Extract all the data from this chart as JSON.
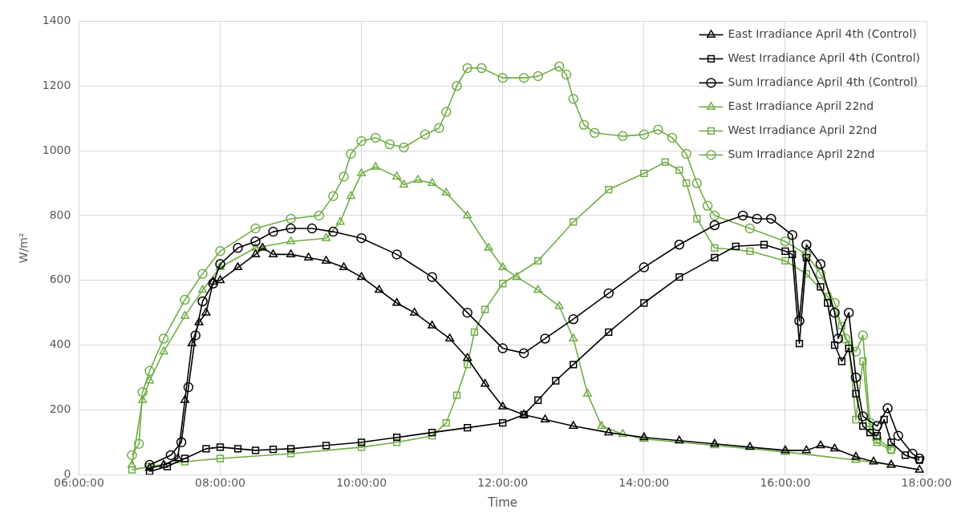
{
  "chart_data": {
    "type": "line",
    "xlabel": "Time",
    "ylabel": "W/m²",
    "xlim": [
      6,
      18
    ],
    "xticks": [
      {
        "value": 6,
        "label": "06:00:00"
      },
      {
        "value": 8,
        "label": "08:00:00"
      },
      {
        "value": 10,
        "label": "10:00:00"
      },
      {
        "value": 12,
        "label": "12:00:00"
      },
      {
        "value": 14,
        "label": "14:00:00"
      },
      {
        "value": 16,
        "label": "16:00:00"
      },
      {
        "value": 18,
        "label": "18:00:00"
      }
    ],
    "ylim": [
      0,
      1400
    ],
    "yticks": [
      0,
      200,
      400,
      600,
      800,
      1000,
      1200,
      1400
    ],
    "grid": true,
    "legend": "top right",
    "line_style": "solid",
    "series": [
      {
        "name": "East Irradiance April 4th (Control)",
        "color": "#000000",
        "marker": "triangle",
        "x": [
          7.0,
          7.2,
          7.4,
          7.5,
          7.6,
          7.7,
          7.8,
          7.9,
          8.0,
          8.25,
          8.5,
          8.6,
          8.75,
          9.0,
          9.25,
          9.5,
          9.75,
          10.0,
          10.25,
          10.5,
          10.75,
          11.0,
          11.25,
          11.5,
          11.75,
          12.0,
          12.3,
          12.6,
          13.0,
          13.5,
          14.0,
          14.5,
          15.0,
          15.5,
          16.0,
          16.3,
          16.5,
          16.7,
          17.0,
          17.25,
          17.5,
          17.9
        ],
        "values": [
          20,
          30,
          50,
          230,
          405,
          470,
          500,
          595,
          600,
          640,
          680,
          700,
          680,
          680,
          670,
          660,
          640,
          610,
          570,
          530,
          500,
          460,
          420,
          360,
          280,
          210,
          185,
          170,
          150,
          130,
          115,
          105,
          95,
          85,
          75,
          75,
          90,
          80,
          55,
          40,
          30,
          15
        ]
      },
      {
        "name": "West Irradiance April 4th (Control)",
        "color": "#000000",
        "marker": "square",
        "x": [
          7.0,
          7.25,
          7.5,
          7.8,
          8.0,
          8.25,
          8.5,
          8.75,
          9.0,
          9.5,
          10.0,
          10.5,
          11.0,
          11.5,
          12.0,
          12.3,
          12.5,
          12.75,
          13.0,
          13.5,
          14.0,
          14.5,
          15.0,
          15.3,
          15.7,
          16.0,
          16.1,
          16.2,
          16.3,
          16.5,
          16.6,
          16.7,
          16.8,
          16.9,
          17.0,
          17.1,
          17.2,
          17.3,
          17.4,
          17.5,
          17.7,
          17.9
        ],
        "values": [
          10,
          25,
          50,
          80,
          85,
          80,
          75,
          78,
          80,
          90,
          100,
          115,
          130,
          145,
          160,
          185,
          230,
          290,
          340,
          440,
          530,
          610,
          670,
          705,
          710,
          690,
          680,
          405,
          670,
          580,
          530,
          400,
          350,
          390,
          250,
          150,
          130,
          120,
          170,
          100,
          60,
          45
        ]
      },
      {
        "name": "Sum Irradiance April 4th (Control)",
        "color": "#000000",
        "marker": "circle",
        "x": [
          7.0,
          7.3,
          7.45,
          7.55,
          7.65,
          7.75,
          7.9,
          8.0,
          8.25,
          8.5,
          8.75,
          9.0,
          9.3,
          9.6,
          10.0,
          10.5,
          11.0,
          11.5,
          12.0,
          12.3,
          12.6,
          13.0,
          13.5,
          14.0,
          14.5,
          15.0,
          15.4,
          15.6,
          15.8,
          16.1,
          16.2,
          16.3,
          16.5,
          16.7,
          16.75,
          16.9,
          17.0,
          17.1,
          17.3,
          17.45,
          17.6,
          17.8,
          17.9
        ],
        "values": [
          30,
          60,
          100,
          270,
          430,
          535,
          590,
          650,
          700,
          720,
          750,
          760,
          760,
          750,
          730,
          680,
          610,
          500,
          390,
          375,
          420,
          480,
          560,
          640,
          710,
          770,
          800,
          790,
          790,
          740,
          475,
          710,
          650,
          500,
          420,
          500,
          300,
          180,
          150,
          205,
          120,
          65,
          50
        ]
      },
      {
        "name": "East Irradiance April 22nd",
        "color": "#70ad47",
        "marker": "triangle",
        "x": [
          6.75,
          6.9,
          7.0,
          7.2,
          7.5,
          7.75,
          8.0,
          8.5,
          9.0,
          9.5,
          9.7,
          9.85,
          10.0,
          10.2,
          10.5,
          10.6,
          10.8,
          11.0,
          11.2,
          11.5,
          11.8,
          12.0,
          12.2,
          12.5,
          12.8,
          13.0,
          13.2,
          13.4,
          13.7,
          14.0,
          15.0,
          16.0,
          17.0,
          17.5
        ],
        "values": [
          30,
          230,
          290,
          380,
          490,
          570,
          640,
          700,
          720,
          730,
          780,
          860,
          930,
          950,
          920,
          895,
          910,
          900,
          870,
          800,
          700,
          640,
          610,
          570,
          520,
          420,
          250,
          150,
          125,
          110,
          90,
          70,
          45,
          30
        ]
      },
      {
        "name": "West Irradiance April 22nd",
        "color": "#70ad47",
        "marker": "square",
        "x": [
          6.75,
          7.0,
          7.5,
          8.0,
          9.0,
          10.0,
          10.5,
          11.0,
          11.2,
          11.35,
          11.5,
          11.6,
          11.75,
          12.0,
          12.5,
          13.0,
          13.5,
          14.0,
          14.3,
          14.5,
          14.6,
          14.75,
          15.0,
          15.5,
          16.0,
          16.3,
          16.6,
          16.8,
          16.9,
          17.0,
          17.1,
          17.2,
          17.3,
          17.5
        ],
        "values": [
          15,
          25,
          40,
          50,
          65,
          85,
          100,
          120,
          160,
          245,
          340,
          440,
          510,
          590,
          660,
          780,
          880,
          930,
          965,
          940,
          900,
          790,
          700,
          690,
          660,
          620,
          550,
          460,
          400,
          170,
          350,
          130,
          100,
          75
        ]
      },
      {
        "name": "Sum Irradiance April 22nd",
        "color": "#70ad47",
        "marker": "circle",
        "x": [
          6.75,
          6.85,
          6.9,
          7.0,
          7.2,
          7.5,
          7.75,
          8.0,
          8.5,
          9.0,
          9.4,
          9.6,
          9.75,
          9.85,
          10.0,
          10.2,
          10.4,
          10.6,
          10.9,
          11.1,
          11.2,
          11.35,
          11.5,
          11.7,
          12.0,
          12.3,
          12.5,
          12.8,
          12.9,
          13.0,
          13.15,
          13.3,
          13.7,
          14.0,
          14.2,
          14.4,
          14.6,
          14.75,
          14.9,
          15.0,
          15.5,
          16.0,
          16.3,
          16.5,
          16.7,
          16.85,
          17.0,
          17.1,
          17.2,
          17.3,
          17.5
        ],
        "values": [
          60,
          95,
          255,
          320,
          420,
          540,
          620,
          690,
          760,
          790,
          800,
          860,
          920,
          990,
          1030,
          1040,
          1020,
          1010,
          1050,
          1070,
          1120,
          1200,
          1255,
          1255,
          1225,
          1225,
          1230,
          1260,
          1235,
          1160,
          1080,
          1055,
          1045,
          1050,
          1065,
          1040,
          990,
          900,
          830,
          800,
          760,
          720,
          680,
          620,
          530,
          420,
          380,
          430,
          160,
          110,
          80
        ]
      }
    ]
  }
}
